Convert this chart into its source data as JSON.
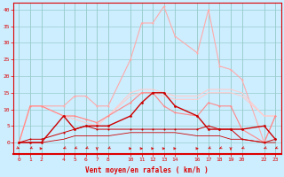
{
  "bg_color": "#cceeff",
  "grid_color": "#99cccc",
  "axis_color": "#dd0000",
  "xlabel_text": "Vent moyen/en rafales ( km/h )",
  "yticks": [
    0,
    5,
    10,
    15,
    20,
    25,
    30,
    35,
    40
  ],
  "hours": [
    0,
    1,
    2,
    4,
    5,
    6,
    7,
    8,
    10,
    11,
    12,
    13,
    14,
    16,
    17,
    18,
    19,
    20,
    22,
    23
  ],
  "series": [
    {
      "name": "rafales_high",
      "color": "#ffaaaa",
      "linewidth": 0.8,
      "marker": "o",
      "markersize": 1.5,
      "values": [
        0,
        11,
        11,
        11,
        14,
        14,
        11,
        11,
        25,
        36,
        36,
        41,
        32,
        27,
        40,
        23,
        22,
        19,
        0,
        8
      ]
    },
    {
      "name": "trend_light1",
      "color": "#ffcccc",
      "linewidth": 0.8,
      "marker": null,
      "values": [
        0,
        11,
        11,
        8,
        8,
        7,
        6,
        8,
        15,
        16,
        16,
        15,
        14,
        14,
        16,
        16,
        16,
        15,
        8,
        8
      ]
    },
    {
      "name": "trend_light2",
      "color": "#ffcccc",
      "linewidth": 0.8,
      "marker": null,
      "values": [
        0,
        11,
        11,
        8,
        7,
        6,
        5,
        8,
        14,
        15,
        15,
        14,
        13,
        13,
        15,
        15,
        15,
        14,
        8,
        8
      ]
    },
    {
      "name": "rafales_med",
      "color": "#ff8888",
      "linewidth": 0.8,
      "marker": "o",
      "markersize": 1.5,
      "values": [
        0,
        11,
        11,
        8,
        8,
        7,
        6,
        8,
        12,
        15,
        15,
        11,
        9,
        8,
        12,
        11,
        11,
        4,
        0,
        8
      ]
    },
    {
      "name": "wind_main",
      "color": "#cc0000",
      "linewidth": 1.0,
      "marker": "o",
      "markersize": 2.0,
      "values": [
        0,
        0,
        0,
        8,
        4,
        5,
        5,
        5,
        8,
        12,
        15,
        15,
        11,
        8,
        4,
        4,
        4,
        4,
        5,
        1
      ]
    },
    {
      "name": "wind_low",
      "color": "#cc0000",
      "linewidth": 0.7,
      "marker": "o",
      "markersize": 1.5,
      "values": [
        0,
        1,
        1,
        3,
        4,
        5,
        4,
        4,
        4,
        4,
        4,
        4,
        4,
        4,
        5,
        4,
        4,
        1,
        0,
        1
      ]
    },
    {
      "name": "wind_base",
      "color": "#cc0000",
      "linewidth": 0.6,
      "marker": null,
      "values": [
        0,
        0,
        0,
        1,
        2,
        2,
        2,
        2,
        3,
        3,
        3,
        3,
        3,
        2,
        2,
        2,
        1,
        1,
        0,
        0
      ]
    }
  ],
  "arrow_directions": [
    135,
    225,
    90,
    225,
    225,
    225,
    180,
    225,
    90,
    90,
    90,
    90,
    90,
    90,
    225,
    225,
    180,
    225,
    225,
    225
  ]
}
